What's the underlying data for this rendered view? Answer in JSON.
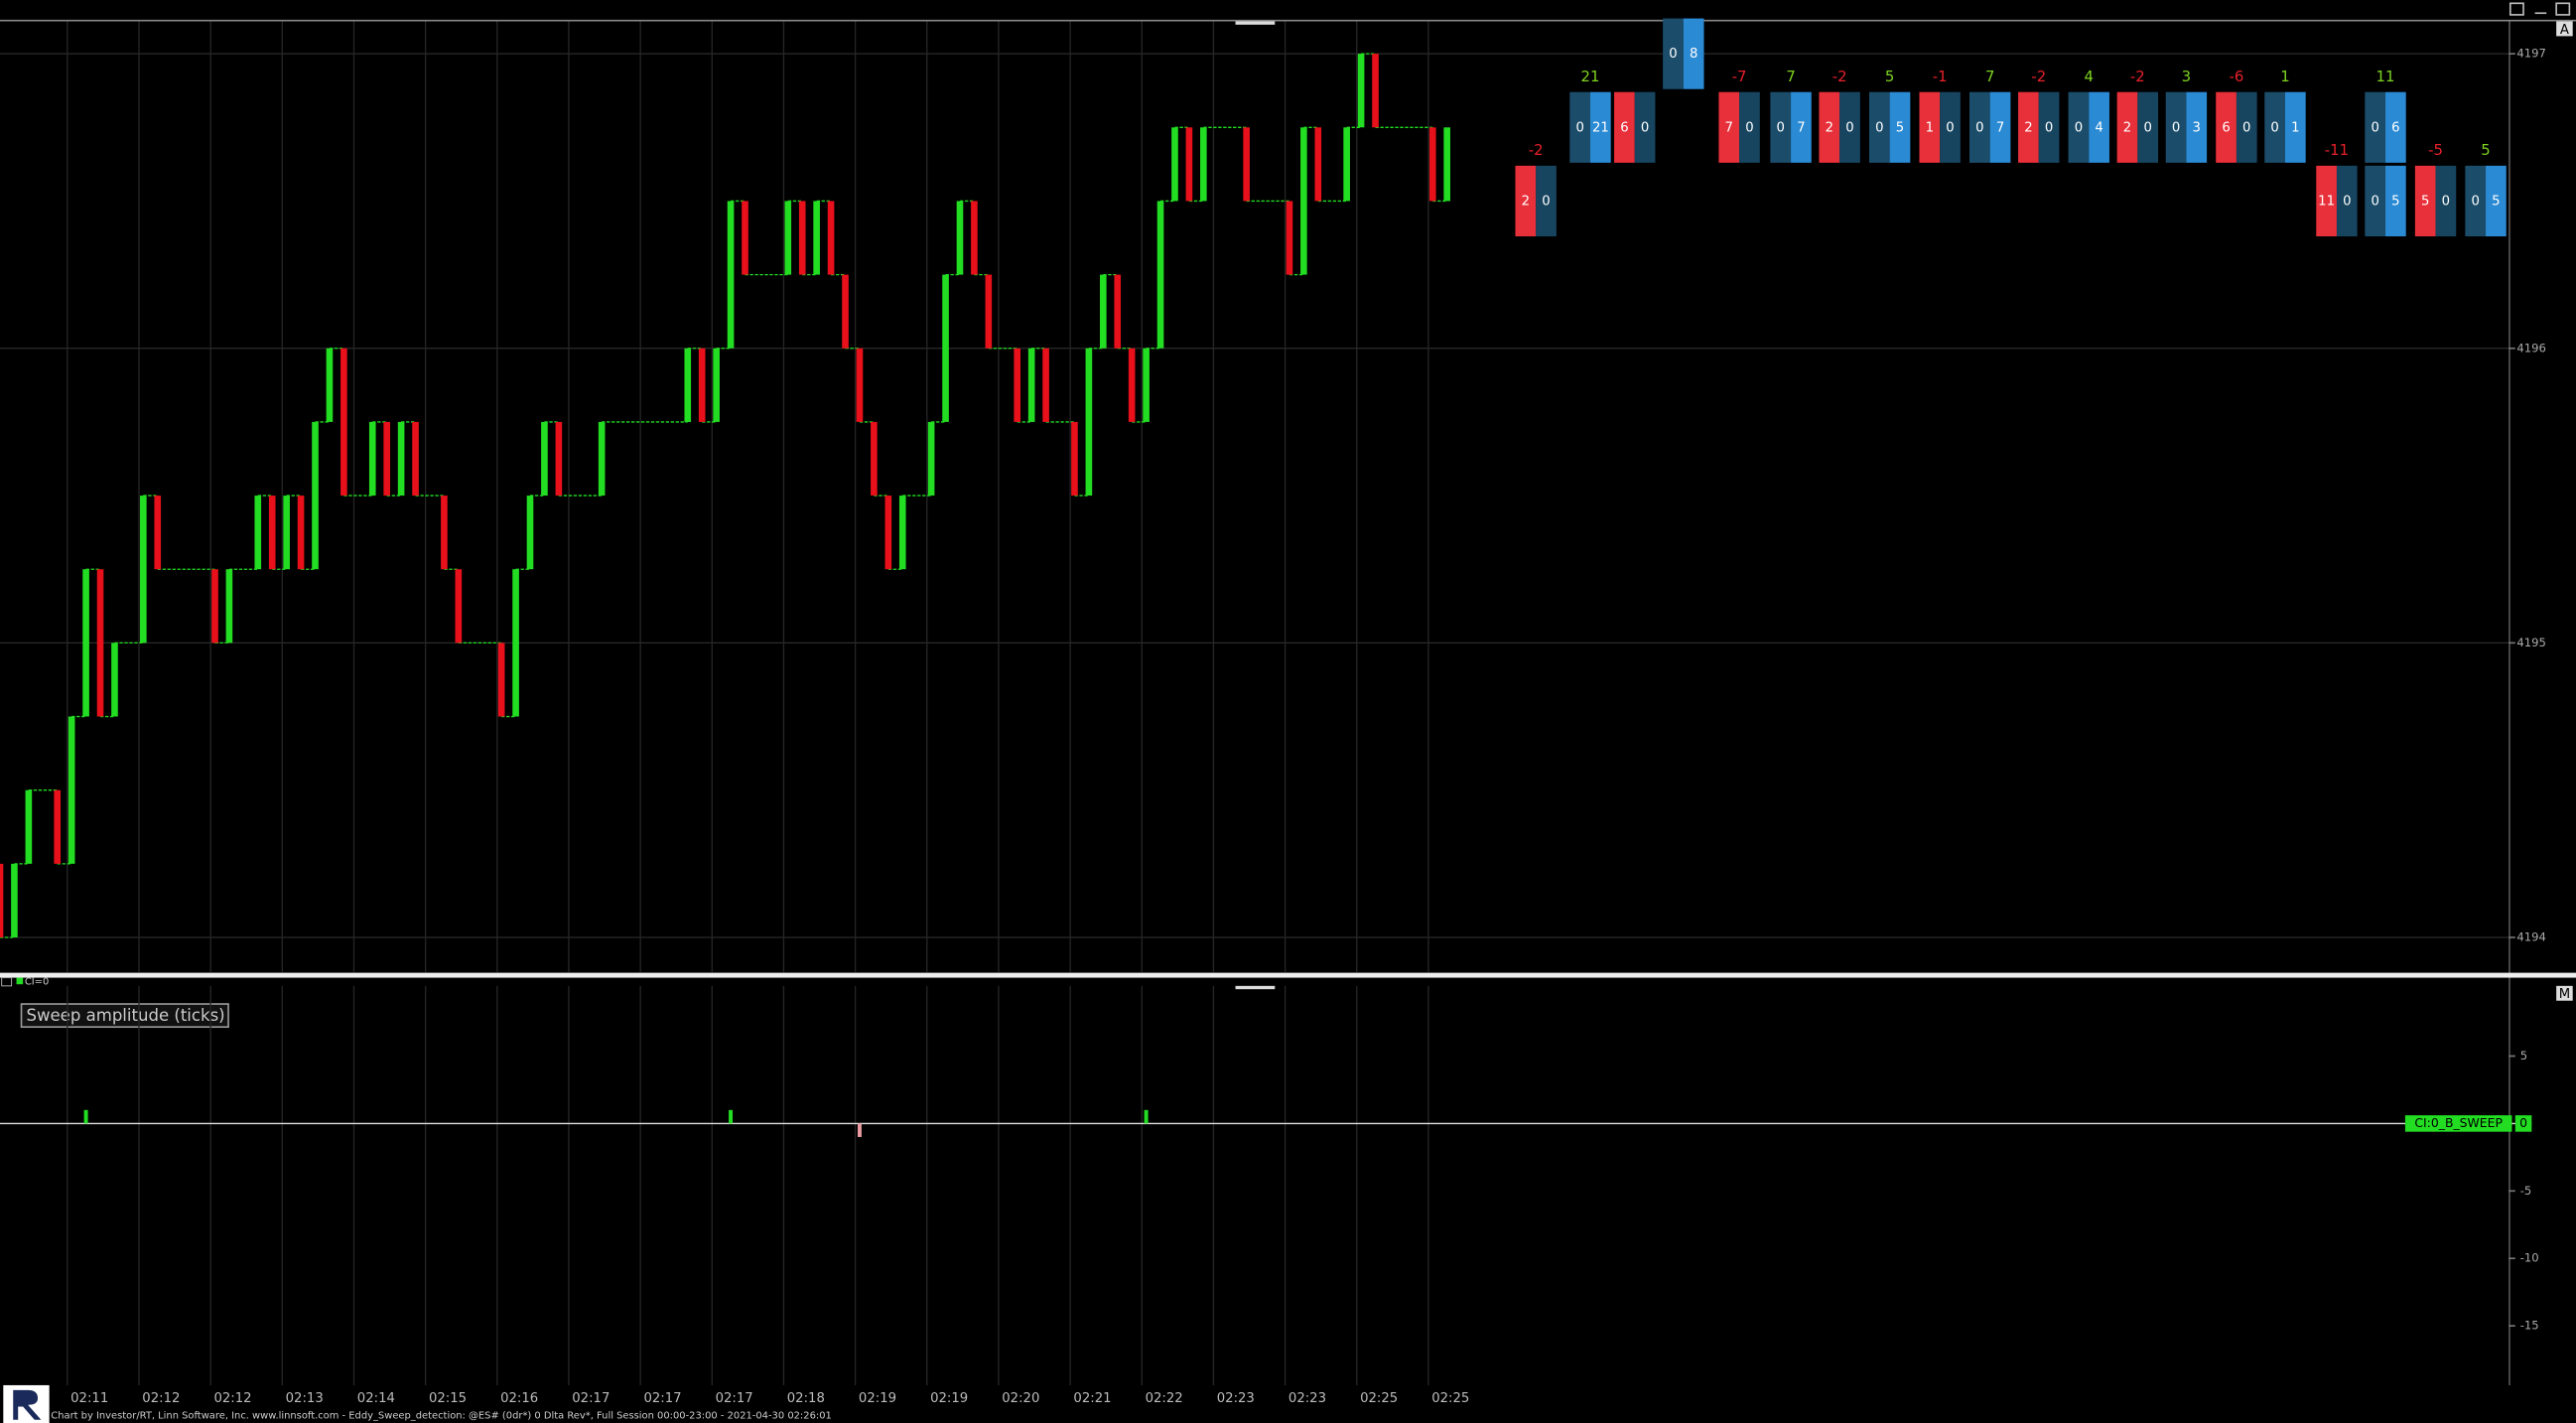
{
  "chart_data": [
    {
      "type": "candlestick",
      "panel_id": "A",
      "x": [
        0,
        1,
        2,
        4,
        5,
        6,
        7,
        8,
        10,
        11,
        15,
        16,
        18,
        19,
        20,
        21,
        22,
        23,
        24,
        26,
        27,
        28,
        29,
        31,
        32,
        35,
        36,
        37,
        38,
        39,
        42,
        48,
        49,
        50,
        51,
        52,
        55,
        56,
        57,
        58,
        59,
        60,
        61,
        62,
        63,
        65,
        66,
        67,
        68,
        69,
        71,
        72,
        73,
        75,
        76,
        77,
        78,
        79,
        80,
        81,
        82,
        83,
        84,
        87,
        90,
        91,
        92,
        94,
        95,
        96,
        100,
        101
      ],
      "open": [
        4194.25,
        4194,
        4194.25,
        4194.5,
        4194.25,
        4194.75,
        4195.25,
        4194.75,
        4195,
        4195.5,
        4195.25,
        4195,
        4195.25,
        4195.5,
        4195.25,
        4195.5,
        4195.25,
        4195.75,
        4196,
        4195.5,
        4195.75,
        4195.5,
        4195.75,
        4195.5,
        4195.25,
        4195,
        4194.75,
        4195.25,
        4195.5,
        4195.75,
        4195.5,
        4195.75,
        4196,
        4195.75,
        4196,
        4196.5,
        4196.25,
        4196.5,
        4196.25,
        4196.5,
        4196.25,
        4196,
        4195.75,
        4195.5,
        4195.25,
        4195.5,
        4195.75,
        4196.25,
        4196.5,
        4196.25,
        4196,
        4195.75,
        4196,
        4195.75,
        4195.5,
        4196,
        4196.25,
        4196,
        4195.75,
        4196,
        4196.5,
        4196.75,
        4196.5,
        4196.75,
        4196.5,
        4196.25,
        4196.75,
        4196.5,
        4196.75,
        4197,
        4196.75,
        4196.5
      ],
      "close": [
        4194,
        4194.25,
        4194.5,
        4194.25,
        4194.75,
        4195.25,
        4194.75,
        4195,
        4195.5,
        4195.25,
        4195,
        4195.25,
        4195.5,
        4195.25,
        4195.5,
        4195.25,
        4195.75,
        4196,
        4195.5,
        4195.75,
        4195.5,
        4195.75,
        4195.5,
        4195.25,
        4195,
        4194.75,
        4195.25,
        4195.5,
        4195.75,
        4195.5,
        4195.75,
        4196,
        4195.75,
        4196,
        4196.5,
        4196.25,
        4196.5,
        4196.25,
        4196.5,
        4196.25,
        4196,
        4195.75,
        4195.5,
        4195.25,
        4195.5,
        4195.75,
        4196.25,
        4196.5,
        4196.25,
        4196,
        4195.75,
        4196,
        4195.75,
        4195.5,
        4196,
        4196.25,
        4196,
        4195.75,
        4196,
        4196.5,
        4196.75,
        4196.5,
        4196.75,
        4196.5,
        4196.25,
        4196.75,
        4196.5,
        4196.75,
        4197,
        4196.75,
        4196.5,
        4196.75
      ],
      "up_color": "#22dd22",
      "down_color": "#e8101a",
      "xlim": [
        0,
        175.1
      ],
      "ylim": [
        4193.88,
        4197.11
      ],
      "yticks": [
        4194,
        4195,
        4196,
        4197
      ],
      "xticks": [
        {
          "value": 4.7,
          "label": "02:11"
        },
        {
          "value": 9.7,
          "label": "02:12"
        },
        {
          "value": 14.7,
          "label": "02:12"
        },
        {
          "value": 19.7,
          "label": "02:13"
        },
        {
          "value": 24.7,
          "label": "02:14"
        },
        {
          "value": 29.7,
          "label": "02:15"
        },
        {
          "value": 34.7,
          "label": "02:16"
        },
        {
          "value": 39.7,
          "label": "02:17"
        },
        {
          "value": 44.7,
          "label": "02:17"
        },
        {
          "value": 49.7,
          "label": "02:17"
        },
        {
          "value": 54.7,
          "label": "02:18"
        },
        {
          "value": 59.7,
          "label": "02:19"
        },
        {
          "value": 64.7,
          "label": "02:19"
        },
        {
          "value": 69.7,
          "label": "02:20"
        },
        {
          "value": 74.7,
          "label": "02:21"
        },
        {
          "value": 79.7,
          "label": "02:22"
        },
        {
          "value": 84.7,
          "label": "02:23"
        },
        {
          "value": 89.7,
          "label": "02:23"
        },
        {
          "value": 94.7,
          "label": "02:25"
        },
        {
          "value": 99.7,
          "label": "02:25"
        }
      ],
      "grid": true,
      "footprint": [
        {
          "x": 107.2,
          "delta": -2,
          "cells": [
            {
              "price": 4196.5,
              "bid": 2,
              "ask": 0
            }
          ]
        },
        {
          "x": 111,
          "delta": 21,
          "cells": [
            {
              "price": 4196.75,
              "bid": 0,
              "ask": 21
            }
          ]
        },
        {
          "x": 114.1,
          "delta": null,
          "cells": [
            {
              "price": 4196.75,
              "bid": 6,
              "ask": 0
            }
          ]
        },
        {
          "x": 117.5,
          "delta": null,
          "cells": [
            {
              "price": 4197,
              "bid": 0,
              "ask": 8
            }
          ]
        },
        {
          "x": 121.4,
          "delta": -7,
          "cells": [
            {
              "price": 4196.75,
              "bid": 7,
              "ask": 0
            }
          ]
        },
        {
          "x": 125,
          "delta": 7,
          "cells": [
            {
              "price": 4196.75,
              "bid": 0,
              "ask": 7
            }
          ]
        },
        {
          "x": 128.4,
          "delta": -2,
          "cells": [
            {
              "price": 4196.75,
              "bid": 2,
              "ask": 0
            }
          ]
        },
        {
          "x": 131.9,
          "delta": 5,
          "cells": [
            {
              "price": 4196.75,
              "bid": 0,
              "ask": 5
            }
          ]
        },
        {
          "x": 135.4,
          "delta": -1,
          "cells": [
            {
              "price": 4196.75,
              "bid": 1,
              "ask": 0
            }
          ]
        },
        {
          "x": 138.9,
          "delta": 7,
          "cells": [
            {
              "price": 4196.75,
              "bid": 0,
              "ask": 7
            }
          ]
        },
        {
          "x": 142.3,
          "delta": -2,
          "cells": [
            {
              "price": 4196.75,
              "bid": 2,
              "ask": 0
            }
          ]
        },
        {
          "x": 145.8,
          "delta": 4,
          "cells": [
            {
              "price": 4196.75,
              "bid": 0,
              "ask": 4
            }
          ]
        },
        {
          "x": 149.2,
          "delta": -2,
          "cells": [
            {
              "price": 4196.75,
              "bid": 2,
              "ask": 0
            }
          ]
        },
        {
          "x": 152.6,
          "delta": 3,
          "cells": [
            {
              "price": 4196.75,
              "bid": 0,
              "ask": 3
            }
          ]
        },
        {
          "x": 156.1,
          "delta": -6,
          "cells": [
            {
              "price": 4196.75,
              "bid": 6,
              "ask": 0
            }
          ]
        },
        {
          "x": 159.5,
          "delta": 1,
          "cells": [
            {
              "price": 4196.75,
              "bid": 0,
              "ask": 1
            }
          ]
        },
        {
          "x": 163.1,
          "delta": -11,
          "cells": [
            {
              "price": 4196.5,
              "bid": 11,
              "ask": 0
            }
          ]
        },
        {
          "x": 166.5,
          "delta": 11,
          "cells": [
            {
              "price": 4196.75,
              "bid": 0,
              "ask": 6
            },
            {
              "price": 4196.5,
              "bid": 0,
              "ask": 5
            }
          ]
        },
        {
          "x": 170,
          "delta": -5,
          "cells": [
            {
              "price": 4196.5,
              "bid": 5,
              "ask": 0
            }
          ]
        },
        {
          "x": 173.5,
          "delta": 5,
          "cells": [
            {
              "price": 4196.5,
              "bid": 0,
              "ask": 5
            }
          ]
        }
      ]
    },
    {
      "type": "bar",
      "panel_id": "M",
      "title": "Sweep amplitude (ticks)",
      "indicator_label": "CI=0",
      "x": [
        6,
        51,
        60,
        80
      ],
      "values": [
        1,
        1,
        -1,
        1
      ],
      "up_color": "#22dd22",
      "down_color": "#e89aa0",
      "xlim": [
        0,
        175.1
      ],
      "ylim": [
        -19.4,
        10.2
      ],
      "yticks": [
        -15,
        -10,
        -5,
        5
      ],
      "series_label": "CI:0_B_SWEEP",
      "current_value": 0
    }
  ],
  "footer": "Chart by Investor/RT, Linn Software, Inc. www.linnsoft.com - Eddy_Sweep_detection: @ES# (0dr*) 0 Dlta Rev*, Full Session 00:00-23:00 - 2021-04-30 02:26:01"
}
